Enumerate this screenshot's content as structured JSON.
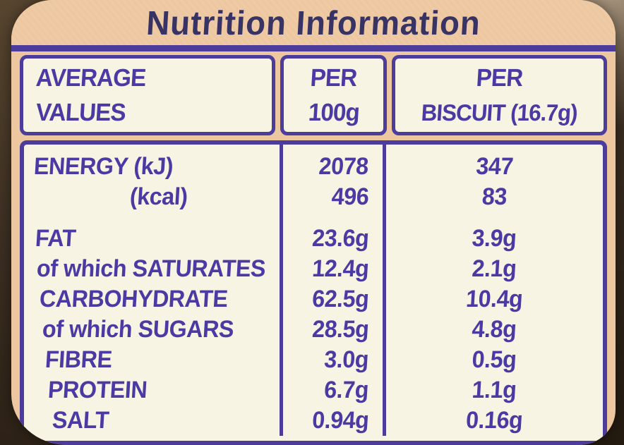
{
  "title": "Nutrition Information",
  "header": {
    "col1_line1": "AVERAGE",
    "col1_line2": "VALUES",
    "col2_line1": "PER",
    "col2_line2": "100g",
    "col3_line1": "PER",
    "col3_line2": "BISCUIT (16.7g)"
  },
  "rows": [
    {
      "label": "ENERGY (kJ)",
      "per_100g": "2078",
      "per_biscuit": "347"
    },
    {
      "label": "(kcal)",
      "per_100g": "496",
      "per_biscuit": "83"
    },
    {
      "label": "FAT",
      "per_100g": "23.6g",
      "per_biscuit": "3.9g"
    },
    {
      "label": "of which SATURATES",
      "per_100g": "12.4g",
      "per_biscuit": "2.1g"
    },
    {
      "label": "CARBOHYDRATE",
      "per_100g": "62.5g",
      "per_biscuit": "10.4g"
    },
    {
      "label": "of which SUGARS",
      "per_100g": "28.5g",
      "per_biscuit": "4.8g"
    },
    {
      "label": "FIBRE",
      "per_100g": "3.0g",
      "per_biscuit": "0.5g"
    },
    {
      "label": "PROTEIN",
      "per_100g": "6.7g",
      "per_biscuit": "1.1g"
    },
    {
      "label": "SALT",
      "per_100g": "0.94g",
      "per_biscuit": "0.16g"
    }
  ],
  "colors": {
    "bg": "#3a2d21",
    "tan": "#edc79f",
    "cream": "#f8f4e3",
    "border": "#4c3c9c",
    "ink": "#4c3aa4",
    "title": "#383365"
  }
}
